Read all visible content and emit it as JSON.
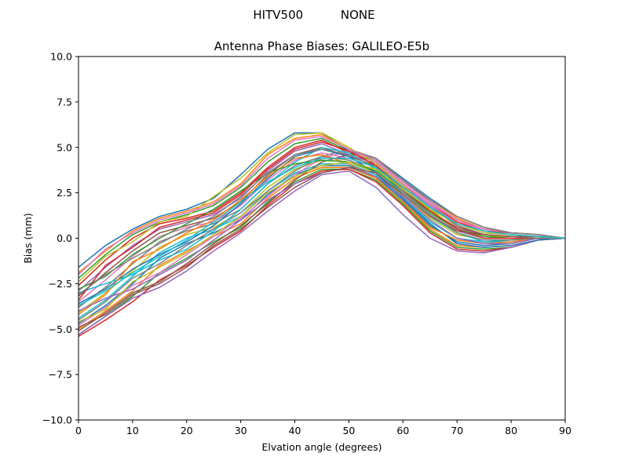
{
  "suptitle": "HITV500          NONE",
  "chart_data": {
    "type": "line",
    "title": "Antenna Phase Biases: GALILEO-E5b",
    "xlabel": "Elvation angle (degrees)",
    "ylabel": "Bias (mm)",
    "xlim": [
      0,
      90
    ],
    "ylim": [
      -10,
      10
    ],
    "xticks": [
      0,
      10,
      20,
      30,
      40,
      50,
      60,
      70,
      80,
      90
    ],
    "yticks": [
      -10.0,
      -7.5,
      -5.0,
      -2.5,
      0.0,
      2.5,
      5.0,
      7.5,
      10.0
    ],
    "x": [
      0,
      5,
      10,
      15,
      20,
      25,
      30,
      35,
      40,
      45,
      50,
      55,
      60,
      65,
      70,
      75,
      80,
      85,
      90
    ],
    "grid": false,
    "colors": [
      "#1f77b4",
      "#ff7f0e",
      "#2ca02c",
      "#d62728",
      "#9467bd",
      "#8c564b",
      "#e377c2",
      "#7f7f7f",
      "#bcbd22",
      "#17becf"
    ],
    "series": [
      {
        "values": [
          -1.6,
          -0.4,
          0.5,
          1.2,
          1.6,
          2.2,
          3.5,
          4.9,
          5.8,
          5.8,
          4.8,
          4.4,
          3.3,
          2.2,
          1.2,
          0.6,
          0.3,
          0.2,
          0.0
        ]
      },
      {
        "values": [
          -1.9,
          -0.7,
          0.4,
          1.1,
          1.5,
          2.0,
          3.0,
          4.6,
          5.5,
          5.7,
          4.9,
          4.4,
          3.2,
          2.1,
          1.1,
          0.5,
          0.3,
          0.2,
          0.0
        ]
      },
      {
        "values": [
          -2.2,
          -0.9,
          0.2,
          0.9,
          1.3,
          1.8,
          2.8,
          4.2,
          5.2,
          5.5,
          4.8,
          4.3,
          3.2,
          2.0,
          1.0,
          0.5,
          0.3,
          0.2,
          0.0
        ]
      },
      {
        "values": [
          -2.6,
          -1.2,
          0.0,
          0.8,
          1.1,
          1.5,
          2.5,
          3.9,
          5.0,
          5.4,
          4.7,
          4.2,
          3.0,
          1.9,
          0.9,
          0.4,
          0.3,
          0.2,
          0.0
        ]
      },
      {
        "values": [
          -2.9,
          -1.6,
          -0.4,
          0.5,
          0.9,
          1.3,
          2.2,
          3.7,
          4.8,
          5.2,
          4.6,
          4.1,
          2.9,
          1.8,
          0.8,
          0.3,
          0.2,
          0.1,
          0.0
        ]
      },
      {
        "values": [
          -3.2,
          -1.9,
          -0.7,
          0.3,
          0.7,
          1.1,
          2.0,
          3.5,
          4.6,
          5.0,
          4.5,
          4.0,
          2.8,
          1.7,
          0.7,
          0.2,
          0.1,
          0.1,
          0.0
        ]
      },
      {
        "values": [
          -3.5,
          -2.3,
          -1.0,
          0.1,
          0.6,
          0.9,
          1.8,
          3.2,
          4.3,
          4.7,
          4.4,
          3.9,
          2.7,
          1.5,
          0.6,
          0.1,
          0.1,
          0.1,
          0.0
        ]
      },
      {
        "values": [
          -3.8,
          -2.7,
          -1.4,
          -0.2,
          0.4,
          0.8,
          1.6,
          3.0,
          4.0,
          4.5,
          4.3,
          3.7,
          2.5,
          1.3,
          0.4,
          0.0,
          0.0,
          0.1,
          0.0
        ]
      },
      {
        "values": [
          -4.1,
          -3.0,
          -1.8,
          -0.5,
          0.2,
          0.6,
          1.4,
          2.8,
          3.8,
          4.3,
          4.2,
          3.6,
          2.3,
          1.1,
          0.2,
          -0.1,
          -0.1,
          0.0,
          0.0
        ]
      },
      {
        "values": [
          -4.4,
          -3.4,
          -2.1,
          -0.8,
          0.0,
          0.5,
          1.2,
          2.6,
          3.6,
          4.1,
          4.1,
          3.5,
          2.2,
          0.9,
          0.0,
          -0.2,
          -0.2,
          0.0,
          0.0
        ]
      },
      {
        "values": [
          -4.7,
          -3.7,
          -2.5,
          -1.1,
          -0.3,
          0.3,
          1.0,
          2.4,
          3.5,
          4.0,
          4.0,
          3.4,
          2.1,
          0.7,
          -0.2,
          -0.4,
          -0.3,
          0.0,
          0.0
        ]
      },
      {
        "values": [
          -5.0,
          -4.0,
          -2.9,
          -1.5,
          -0.7,
          0.1,
          0.8,
          2.2,
          3.3,
          3.9,
          3.9,
          3.3,
          2.0,
          0.5,
          -0.4,
          -0.5,
          -0.4,
          -0.1,
          0.0
        ]
      },
      {
        "values": [
          -5.3,
          -4.3,
          -3.2,
          -1.9,
          -1.1,
          -0.2,
          0.6,
          2.0,
          3.1,
          3.8,
          3.8,
          3.2,
          1.9,
          0.4,
          -0.5,
          -0.6,
          -0.5,
          -0.1,
          0.0
        ]
      },
      {
        "values": [
          -5.4,
          -4.5,
          -3.5,
          -2.3,
          -1.5,
          -0.5,
          0.4,
          1.8,
          3.0,
          3.7,
          3.8,
          3.1,
          1.8,
          0.3,
          -0.6,
          -0.7,
          -0.5,
          -0.1,
          0.0
        ]
      },
      {
        "values": [
          -5.3,
          -4.3,
          -3.3,
          -2.7,
          -1.8,
          -0.7,
          0.3,
          1.5,
          2.6,
          3.5,
          3.7,
          2.8,
          1.3,
          0.0,
          -0.7,
          -0.8,
          -0.5,
          -0.1,
          0.0
        ]
      },
      {
        "values": [
          -5.1,
          -4.1,
          -3.0,
          -2.4,
          -1.4,
          -0.3,
          0.7,
          1.9,
          3.2,
          4.2,
          4.6,
          3.9,
          2.6,
          1.5,
          0.6,
          0.2,
          0.1,
          0.1,
          0.0
        ]
      },
      {
        "values": [
          -4.8,
          -3.8,
          -2.6,
          -1.9,
          -0.9,
          0.1,
          1.1,
          2.3,
          3.5,
          4.4,
          4.8,
          4.2,
          3.0,
          1.9,
          1.0,
          0.5,
          0.3,
          0.2,
          0.0
        ]
      },
      {
        "values": [
          -4.5,
          -3.5,
          -2.2,
          -1.4,
          -0.4,
          0.5,
          1.4,
          2.6,
          3.7,
          4.5,
          4.9,
          4.4,
          3.2,
          2.1,
          1.2,
          0.6,
          0.3,
          0.2,
          0.0
        ]
      },
      {
        "values": [
          -2.4,
          -1.0,
          -0.2,
          0.9,
          1.2,
          2.3,
          3.3,
          4.7,
          5.7,
          5.8,
          5.0,
          4.1,
          2.9,
          1.6,
          0.5,
          0.1,
          0.1,
          0.1,
          0.0
        ]
      },
      {
        "values": [
          -3.0,
          -2.5,
          -2.0,
          -1.2,
          -0.6,
          0.4,
          1.6,
          3.0,
          4.2,
          5.0,
          4.7,
          3.8,
          2.4,
          1.2,
          0.3,
          -0.2,
          -0.1,
          0.0,
          0.0
        ]
      },
      {
        "values": [
          -3.6,
          -2.8,
          -1.7,
          -0.9,
          -0.2,
          0.7,
          1.9,
          3.3,
          4.5,
          4.9,
          4.5,
          3.6,
          2.2,
          0.8,
          -0.3,
          -0.5,
          -0.4,
          -0.1,
          0.0
        ]
      },
      {
        "values": [
          -4.2,
          -3.1,
          -1.3,
          -0.6,
          0.3,
          1.0,
          2.1,
          3.4,
          4.4,
          4.6,
          4.1,
          3.3,
          2.0,
          0.6,
          -0.1,
          -0.3,
          -0.2,
          0.0,
          0.0
        ]
      },
      {
        "values": [
          -2.8,
          -2.1,
          -0.9,
          0.0,
          0.8,
          1.6,
          2.6,
          3.6,
          4.1,
          4.3,
          4.2,
          3.7,
          2.6,
          1.4,
          0.5,
          0.1,
          0.0,
          0.0,
          0.0
        ]
      },
      {
        "values": [
          -3.4,
          -1.5,
          -0.5,
          0.6,
          1.0,
          1.4,
          2.4,
          3.8,
          4.9,
          5.3,
          4.8,
          4.0,
          2.7,
          1.5,
          0.5,
          0.0,
          0.0,
          0.0,
          0.0
        ]
      },
      {
        "values": [
          -4.0,
          -3.3,
          -2.8,
          -2.0,
          -1.2,
          -0.1,
          1.0,
          2.1,
          3.0,
          3.6,
          3.9,
          3.4,
          2.3,
          1.0,
          0.0,
          -0.3,
          -0.3,
          0.0,
          0.0
        ]
      },
      {
        "values": [
          -4.9,
          -4.2,
          -3.1,
          -2.5,
          -1.6,
          -0.4,
          0.5,
          1.7,
          2.8,
          3.6,
          3.9,
          3.6,
          2.4,
          1.2,
          0.4,
          0.2,
          0.1,
          0.1,
          0.0
        ]
      },
      {
        "values": [
          -2.0,
          -0.6,
          0.3,
          1.0,
          1.4,
          1.9,
          2.9,
          4.4,
          5.4,
          5.6,
          4.9,
          4.3,
          3.1,
          2.0,
          1.0,
          0.4,
          0.2,
          0.1,
          0.0
        ]
      },
      {
        "values": [
          -3.1,
          -2.0,
          -1.1,
          -0.3,
          0.5,
          1.2,
          2.3,
          3.6,
          4.6,
          4.9,
          4.6,
          3.9,
          2.6,
          1.3,
          0.3,
          -0.1,
          -0.1,
          0.0,
          0.0
        ]
      },
      {
        "values": [
          -4.6,
          -3.9,
          -2.4,
          -1.6,
          -0.8,
          0.2,
          1.2,
          2.5,
          3.4,
          4.0,
          4.2,
          3.8,
          2.7,
          1.6,
          0.8,
          0.3,
          0.2,
          0.1,
          0.0
        ]
      },
      {
        "values": [
          -3.7,
          -2.9,
          -1.9,
          -1.0,
          -0.1,
          0.9,
          2.0,
          3.1,
          3.9,
          4.4,
          4.4,
          3.9,
          2.8,
          1.7,
          0.8,
          0.4,
          0.2,
          0.1,
          0.0
        ]
      }
    ]
  }
}
